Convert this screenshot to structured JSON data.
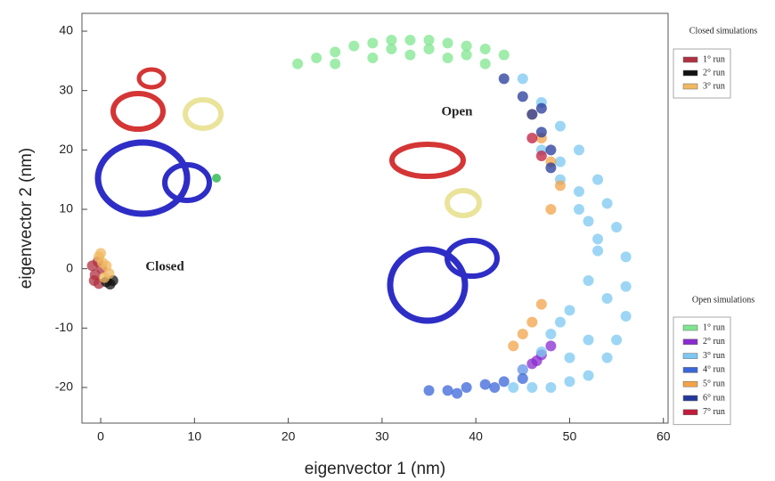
{
  "chart_data": {
    "type": "scatter",
    "x_label": "eigenvector 1 (nm)",
    "y_label": "eigenvector 2 (nm)",
    "xlim": [
      -2,
      60.5
    ],
    "ylim": [
      -26,
      43
    ],
    "xticks": [
      0,
      10,
      20,
      30,
      40,
      50,
      60
    ],
    "yticks": [
      -20,
      -10,
      0,
      10,
      20,
      30,
      40
    ],
    "annotations": [
      "Open",
      "Closed"
    ],
    "series_groups": [
      {
        "name": "Closed simulations",
        "series": [
          {
            "name": "1° run",
            "color": "#b03040",
            "x": [
              -0.9,
              -0.6,
              -0.3,
              -0.7,
              -0.2,
              0.1
            ],
            "y": [
              0.5,
              -1.0,
              1.2,
              -2.0,
              -2.5,
              0.0
            ]
          },
          {
            "name": "2° run",
            "color": "#111111",
            "x": [
              0.6,
              1.0,
              1.3
            ],
            "y": [
              -2.2,
              -2.6,
              -2.0
            ]
          },
          {
            "name": "3° run",
            "color": "#f0b860",
            "x": [
              -0.2,
              0.2,
              0.6,
              0.9,
              0.4,
              0.0
            ],
            "y": [
              2.0,
              1.0,
              0.5,
              -0.8,
              -1.5,
              2.6
            ]
          }
        ]
      },
      {
        "name": "Open simulations",
        "series": [
          {
            "name": "1° run",
            "color": "#7fe58f",
            "x": [
              21,
              23,
              25,
              27,
              29,
              31,
              33,
              35,
              37,
              39,
              41,
              43,
              25,
              29,
              33,
              37,
              41,
              31,
              35,
              39
            ],
            "y": [
              34.5,
              35.5,
              36.5,
              37.5,
              38,
              38.5,
              38.5,
              38.5,
              38,
              37.5,
              37,
              36,
              34.5,
              35.5,
              36,
              35.5,
              34.5,
              37,
              37,
              36
            ]
          },
          {
            "name": "2° run",
            "color": "#8a2bd0",
            "x": [
              45,
              46,
              47,
              48,
              46.5
            ],
            "y": [
              -17,
              -16,
              -14.5,
              -13,
              -15.5
            ]
          },
          {
            "name": "3° run",
            "color": "#7cc8f2",
            "x": [
              45,
              47,
              49,
              51,
              53,
              54,
              55,
              56,
              56,
              56,
              55,
              54,
              52,
              50,
              48,
              46,
              44,
              49,
              51,
              52,
              53,
              52,
              50,
              48,
              50,
              52,
              54,
              53,
              51,
              49,
              47,
              45,
              47,
              49
            ],
            "y": [
              32,
              28,
              24,
              20,
              15,
              11,
              7,
              2,
              -3,
              -8,
              -12,
              -15,
              -18,
              -19,
              -20,
              -20,
              -20,
              18,
              13,
              8,
              3,
              -2,
              -7,
              -11,
              -15,
              -12,
              -5,
              5,
              10,
              15,
              20,
              -17,
              -14,
              -9
            ]
          },
          {
            "name": "4° run",
            "color": "#3a66d8",
            "x": [
              35,
              37,
              39,
              41,
              43,
              45,
              38,
              42
            ],
            "y": [
              -20.5,
              -20.5,
              -20,
              -19.5,
              -19,
              -18.5,
              -21,
              -20
            ]
          },
          {
            "name": "5° run",
            "color": "#f2a348",
            "x": [
              46,
              47,
              48,
              49,
              47,
              46,
              45,
              44,
              48
            ],
            "y": [
              26,
              22,
              18,
              14,
              -6,
              -9,
              -11,
              -13,
              10
            ]
          },
          {
            "name": "6° run",
            "color": "#23389a",
            "x": [
              43,
              45,
              46,
              47,
              48,
              48,
              47
            ],
            "y": [
              32,
              29,
              26,
              23,
              20,
              17,
              27
            ]
          },
          {
            "name": "7° run",
            "color": "#c01c3c",
            "x": [
              46,
              47
            ],
            "y": [
              22,
              19
            ]
          }
        ]
      }
    ]
  }
}
